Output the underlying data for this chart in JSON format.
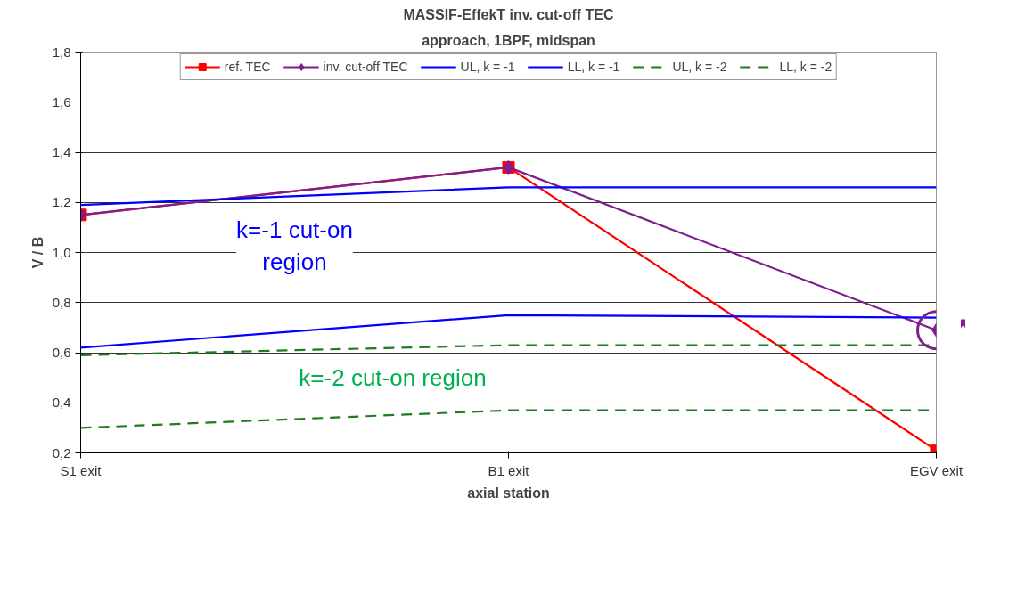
{
  "chart_data": {
    "type": "line",
    "title": "MASSIF-EffekT inv. cut-off TEC",
    "subtitle": "approach, 1BPF, midspan",
    "xlabel": "axial station",
    "ylabel": "V / B",
    "categories": [
      "S1 exit",
      "B1 exit",
      "EGV exit"
    ],
    "series": [
      {
        "name": "ref. TEC",
        "color": "#ff0000",
        "values": [
          1.15,
          1.34,
          0.21
        ],
        "marker": "square",
        "line_style": "solid"
      },
      {
        "name": "inv. cut-off TEC",
        "color": "#7f1f8f",
        "values": [
          1.15,
          1.34,
          0.69
        ],
        "marker": "diamond",
        "line_style": "solid"
      },
      {
        "name": "UL, k = -1",
        "color": "#0000ff",
        "values": [
          1.19,
          1.26,
          1.26
        ],
        "marker": "none",
        "line_style": "solid"
      },
      {
        "name": "LL, k = -1",
        "color": "#0000ff",
        "values": [
          0.62,
          0.75,
          0.74
        ],
        "marker": "none",
        "line_style": "solid"
      },
      {
        "name": "UL, k = -2",
        "color": "#1e7b1e",
        "values": [
          0.59,
          0.63,
          0.63
        ],
        "marker": "none",
        "line_style": "dashed"
      },
      {
        "name": "LL, k = -2",
        "color": "#1e7b1e",
        "values": [
          0.3,
          0.37,
          0.37
        ],
        "marker": "none",
        "line_style": "dashed"
      }
    ],
    "ylim": [
      0.2,
      1.8
    ],
    "yticks": [
      {
        "value": 0.2,
        "label": "0,2"
      },
      {
        "value": 0.4,
        "label": "0,4"
      },
      {
        "value": 0.6,
        "label": "0,6"
      },
      {
        "value": 0.8,
        "label": "0,8"
      },
      {
        "value": 1.0,
        "label": "1,0"
      },
      {
        "value": 1.2,
        "label": "1,2"
      },
      {
        "value": 1.4,
        "label": "1,4"
      },
      {
        "value": 1.6,
        "label": "1,6"
      },
      {
        "value": 1.8,
        "label": "1,8"
      }
    ],
    "grid": "y",
    "legend": "top",
    "annotations": [
      "k=-1 cut-on region",
      "k=-2 cut-on region"
    ]
  }
}
